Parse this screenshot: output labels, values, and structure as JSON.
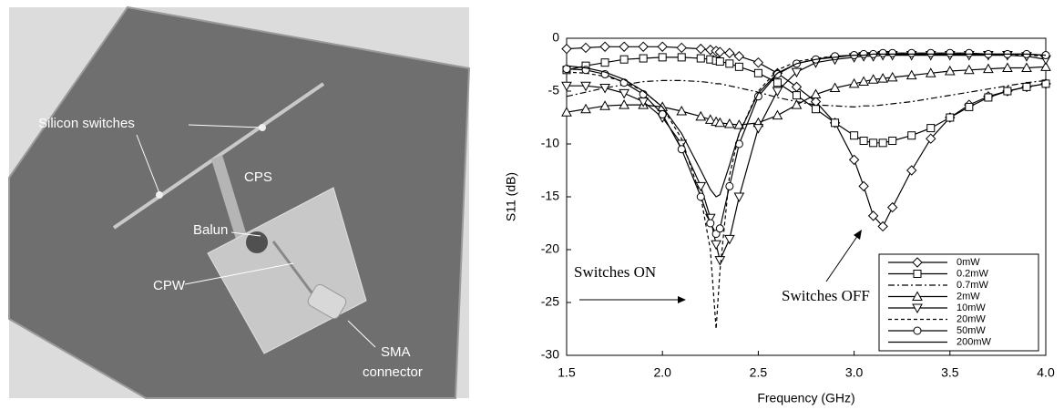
{
  "photo_labels": [
    "Silicon switches",
    "CPS",
    "Balun",
    "CPW",
    "SMA",
    "connector"
  ],
  "chart_data": {
    "type": "line",
    "xlabel": "Frequency (GHz)",
    "ylabel": "S11 (dB)",
    "xlim": [
      1.5,
      4.0
    ],
    "ylim": [
      -30,
      0
    ],
    "xticks": [
      1.5,
      {
        "value": 2,
        "label": "2.0"
      },
      2.5,
      {
        "value": 3,
        "label": "3.0"
      },
      3.5,
      {
        "value": 4,
        "label": "4.0"
      }
    ],
    "yticks": [
      0,
      -5,
      -10,
      -15,
      -20,
      -25,
      -30
    ],
    "grid": false,
    "legend": "lower right",
    "annotations": [
      "Switches ON",
      "Switches OFF"
    ],
    "x": [
      1.5,
      1.6,
      1.7,
      1.8,
      1.9,
      2.0,
      2.1,
      2.2,
      2.25,
      2.28,
      2.3,
      2.35,
      2.4,
      2.5,
      2.6,
      2.7,
      2.8,
      2.9,
      3.0,
      3.05,
      3.1,
      3.15,
      3.2,
      3.3,
      3.4,
      3.5,
      3.6,
      3.7,
      3.8,
      3.9,
      4.0
    ],
    "series": [
      {
        "name": "0mW",
        "color": "#000000",
        "marker": "diamond",
        "linestyle": "solid",
        "values": [
          -1,
          -0.9,
          -0.8,
          -0.8,
          -0.8,
          -0.8,
          -0.9,
          -1.0,
          -1.1,
          -1.2,
          -1.3,
          -1.4,
          -1.7,
          -2.3,
          -3.3,
          -4.6,
          -6.0,
          -8.0,
          -11.5,
          -14,
          -16.8,
          -17.8,
          -16,
          -12.5,
          -9.5,
          -7.5,
          -6.3,
          -5.5,
          -5,
          -4.6,
          -4.3
        ]
      },
      {
        "name": "0.2mW",
        "color": "#000000",
        "marker": "square",
        "linestyle": "solid",
        "values": [
          -3,
          -2.6,
          -2.3,
          -2.0,
          -1.9,
          -1.8,
          -1.8,
          -1.9,
          -2.0,
          -2.1,
          -2.2,
          -2.4,
          -2.7,
          -3.3,
          -4.2,
          -5.4,
          -6.7,
          -8.0,
          -9.2,
          -9.7,
          -9.9,
          -9.9,
          -9.7,
          -9.2,
          -8.5,
          -7.5,
          -6.5,
          -5.6,
          -5,
          -4.6,
          -4.3
        ]
      },
      {
        "name": "0.7mW",
        "color": "#000000",
        "marker": "none",
        "linestyle": "dashdot",
        "values": [
          -5.5,
          -5.1,
          -4.7,
          -4.4,
          -4.1,
          -4.0,
          -4.0,
          -4.1,
          -4.2,
          -4.3,
          -4.3,
          -4.5,
          -4.7,
          -5.1,
          -5.6,
          -6.0,
          -6.3,
          -6.4,
          -6.5,
          -6.4,
          -6.4,
          -6.3,
          -6.2,
          -6.0,
          -5.7,
          -5.4,
          -5.1,
          -4.8,
          -4.5,
          -4.2,
          -4.0
        ]
      },
      {
        "name": "2mW",
        "color": "#000000",
        "marker": "triangle-up",
        "linestyle": "solid",
        "values": [
          -7.0,
          -6.7,
          -6.4,
          -6.3,
          -6.3,
          -6.5,
          -6.9,
          -7.4,
          -7.7,
          -7.9,
          -8.0,
          -8.1,
          -8.2,
          -8.0,
          -7.3,
          -6.3,
          -5.3,
          -4.7,
          -4.3,
          -4.1,
          -3.9,
          -3.8,
          -3.7,
          -3.5,
          -3.3,
          -3.1,
          -3.0,
          -2.9,
          -2.8,
          -2.8,
          -2.7
        ]
      },
      {
        "name": "10mW",
        "color": "#000000",
        "marker": "triangle-down",
        "linestyle": "solid",
        "values": [
          -4.5,
          -4.5,
          -4.7,
          -5.2,
          -6,
          -7.5,
          -10,
          -14,
          -17,
          -19.5,
          -21,
          -19,
          -15,
          -8.5,
          -5,
          -3.2,
          -2.3,
          -2,
          -1.8,
          -1.7,
          -1.7,
          -1.6,
          -1.6,
          -1.6,
          -1.6,
          -1.6,
          -1.6,
          -1.6,
          -1.6,
          -1.7,
          -2.0
        ]
      },
      {
        "name": "20mW",
        "color": "#000000",
        "marker": "none",
        "linestyle": "dashed",
        "values": [
          -3.2,
          -3.3,
          -3.6,
          -4.1,
          -5,
          -6.5,
          -9.5,
          -15,
          -20,
          -27.5,
          -22,
          -13,
          -9,
          -5,
          -3,
          -2.2,
          -1.9,
          -1.7,
          -1.6,
          -1.5,
          -1.5,
          -1.5,
          -1.5,
          -1.5,
          -1.5,
          -1.5,
          -1.5,
          -1.5,
          -1.6,
          -1.6,
          -1.7
        ]
      },
      {
        "name": "50mW",
        "color": "#000000",
        "marker": "circle",
        "linestyle": "solid",
        "values": [
          -2.9,
          -3.0,
          -3.4,
          -4.2,
          -5.3,
          -7.2,
          -10.5,
          -15,
          -17.5,
          -18.5,
          -18,
          -14,
          -10,
          -5.5,
          -3.4,
          -2.4,
          -2,
          -1.7,
          -1.6,
          -1.5,
          -1.5,
          -1.4,
          -1.4,
          -1.4,
          -1.4,
          -1.4,
          -1.4,
          -1.5,
          -1.5,
          -1.5,
          -1.6
        ]
      },
      {
        "name": "200mW",
        "color": "#000000",
        "marker": "none",
        "linestyle": "solid",
        "values": [
          -2.6,
          -2.8,
          -3.2,
          -3.9,
          -5,
          -6.5,
          -9,
          -12.5,
          -14.3,
          -15,
          -14.8,
          -12,
          -9,
          -5.2,
          -3.3,
          -2.4,
          -2,
          -1.8,
          -1.6,
          -1.6,
          -1.5,
          -1.5,
          -1.5,
          -1.5,
          -1.5,
          -1.5,
          -1.5,
          -1.5,
          -1.5,
          -1.5,
          -1.6
        ]
      }
    ]
  }
}
